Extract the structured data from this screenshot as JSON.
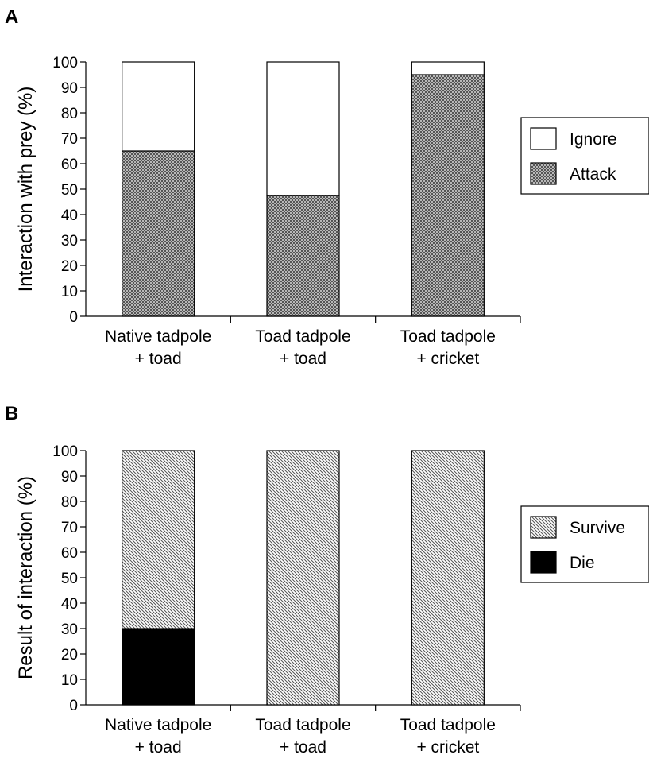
{
  "chart_data": [
    {
      "type": "bar",
      "panel": "A",
      "stacked": true,
      "categories": [
        [
          "Native tadpole",
          "+ toad"
        ],
        [
          "Toad tadpole",
          "+ toad"
        ],
        [
          "Toad tadpole",
          "+ cricket"
        ]
      ],
      "series": [
        {
          "name": "Attack",
          "values": [
            65,
            47.5,
            95
          ],
          "fill": "crosshatch"
        },
        {
          "name": "Ignore",
          "values": [
            35,
            52.5,
            5
          ],
          "fill": "white"
        }
      ],
      "ylabel": "Interaction with prey (%)",
      "ylim": [
        0,
        100
      ],
      "yticks": [
        0,
        10,
        20,
        30,
        40,
        50,
        60,
        70,
        80,
        90,
        100
      ],
      "legend": {
        "position": "right",
        "order": [
          "Ignore",
          "Attack"
        ]
      }
    },
    {
      "type": "bar",
      "panel": "B",
      "stacked": true,
      "categories": [
        [
          "Native tadpole",
          "+ toad"
        ],
        [
          "Toad tadpole",
          "+ toad"
        ],
        [
          "Toad tadpole",
          "+ cricket"
        ]
      ],
      "series": [
        {
          "name": "Die",
          "values": [
            30,
            0,
            0
          ],
          "fill": "black"
        },
        {
          "name": "Survive",
          "values": [
            70,
            100,
            100
          ],
          "fill": "diagonal"
        }
      ],
      "ylabel": "Result of interaction (%)",
      "ylim": [
        0,
        100
      ],
      "yticks": [
        0,
        10,
        20,
        30,
        40,
        50,
        60,
        70,
        80,
        90,
        100
      ],
      "legend": {
        "position": "right",
        "order": [
          "Survive",
          "Die"
        ]
      }
    }
  ]
}
